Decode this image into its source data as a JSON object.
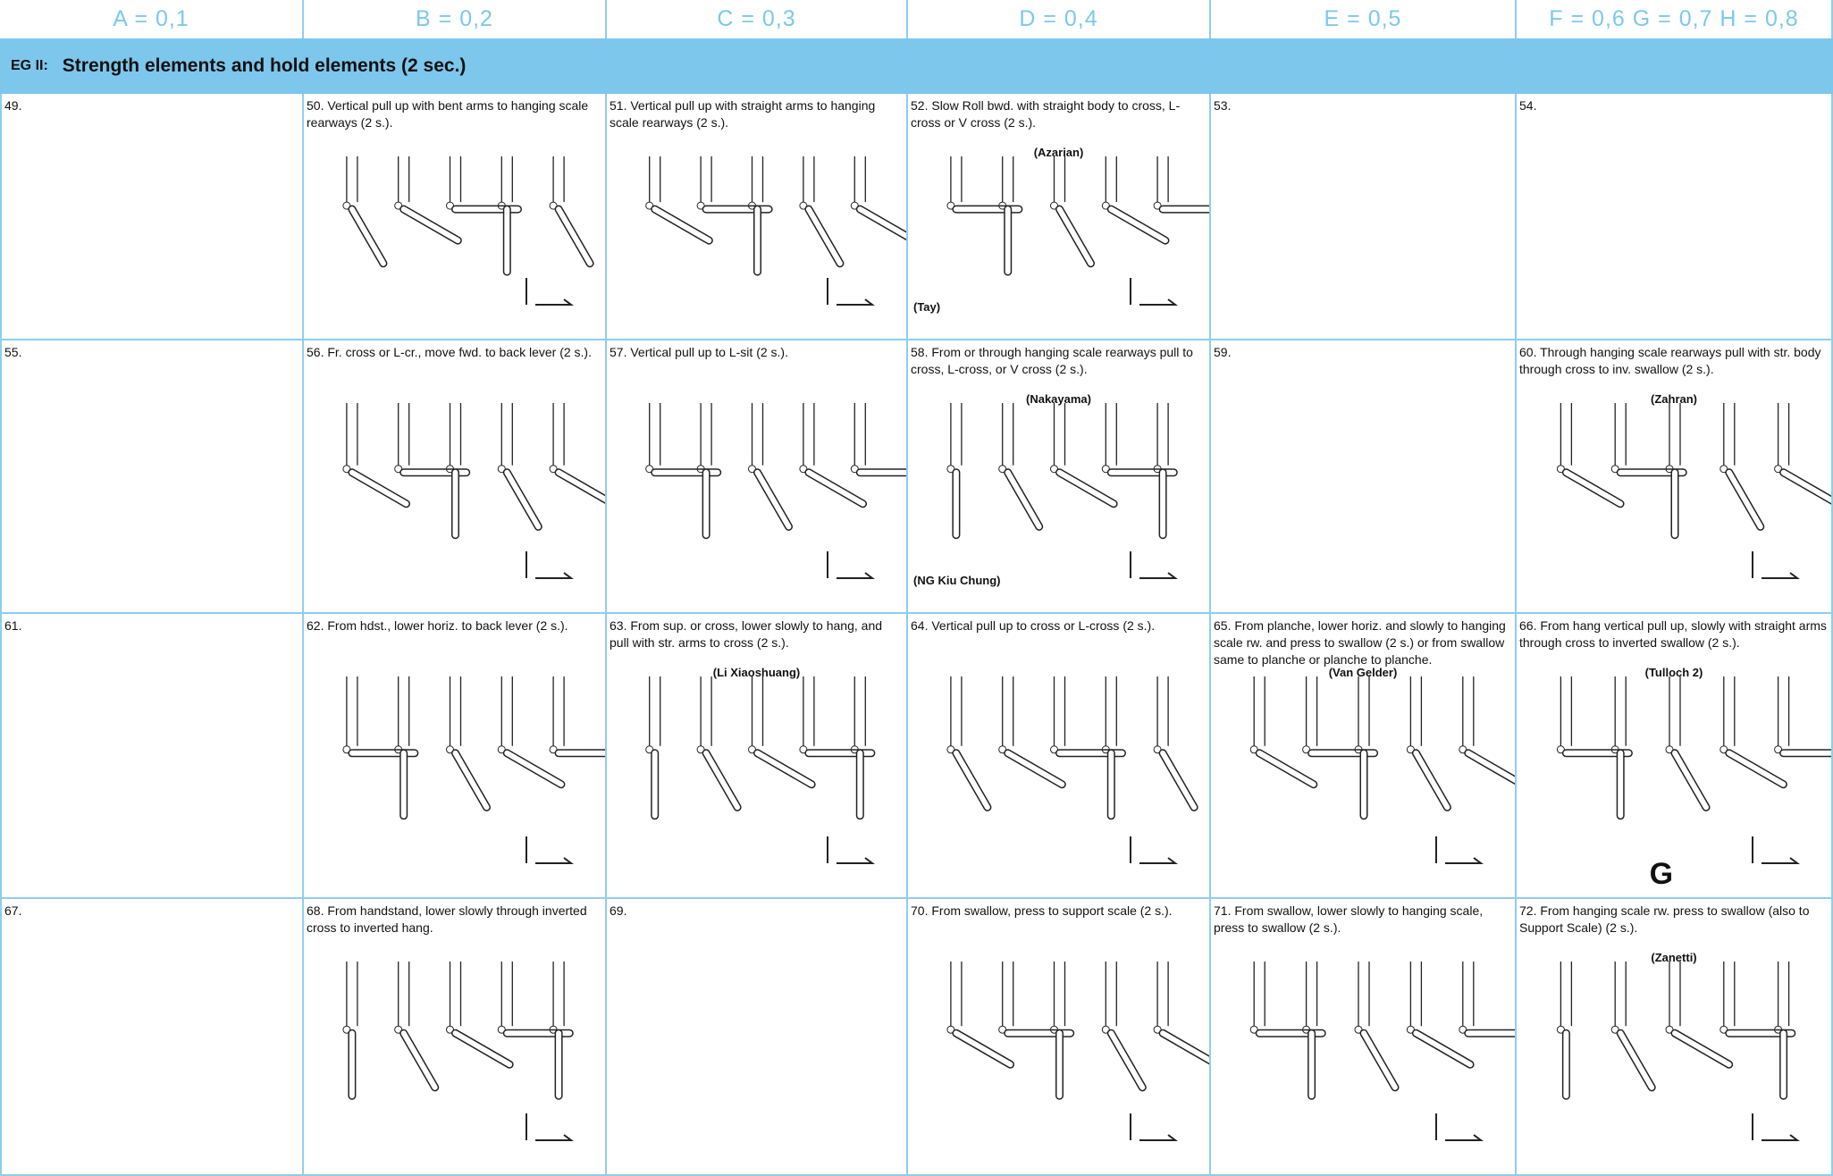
{
  "header": {
    "columns": [
      "A = 0,1",
      "B = 0,2",
      "C = 0,3",
      "D = 0,4",
      "E = 0,5",
      "F = 0,6 G = 0,7 H = 0,8"
    ]
  },
  "section": {
    "code": "EG II:",
    "title": "Strength elements and hold elements (2 sec.)"
  },
  "rows": [
    [
      {
        "text": "49."
      },
      {
        "text": "50. Vertical pull up with bent arms to hanging scale rearways (2 s.)."
      },
      {
        "text": "51. Vertical pull up with straight arms to hanging scale rearways (2 s.)."
      },
      {
        "text": "52. Slow Roll bwd. with straight body to cross, L-cross or V cross (2 s.).",
        "names": [
          "(Azarian)",
          "(Tay)"
        ]
      },
      {
        "text": "53."
      },
      {
        "text": "54."
      }
    ],
    [
      {
        "text": "55."
      },
      {
        "text": "56. Fr. cross or L-cr., move fwd. to back lever (2 s.)."
      },
      {
        "text": "57. Vertical pull up to L-sit (2 s.)."
      },
      {
        "text": "58. From or through hanging scale rearways pull to cross, L-cross, or V cross (2 s.).",
        "names": [
          "(Nakayama)",
          "(NG Kiu Chung)"
        ]
      },
      {
        "text": "59."
      },
      {
        "text": "60. Through hanging scale rearways pull with str. body through cross to inv. swallow (2 s.).",
        "names": [
          "(Zahran)"
        ]
      }
    ],
    [
      {
        "text": "61."
      },
      {
        "text": "62. From hdst., lower horiz. to back lever (2 s.)."
      },
      {
        "text": "63. From sup. or cross, lower slowly to hang, and pull with str. arms to cross (2 s.).",
        "names": [
          "(Li Xiaoshuang)"
        ]
      },
      {
        "text": "64. Vertical pull up to cross or L-cross (2 s.)."
      },
      {
        "text": "65. From planche, lower horiz. and slowly to hanging scale rw. and press to swallow (2 s.) or from swallow same to planche or planche to planche.",
        "names": [
          "(Van Gelder)"
        ]
      },
      {
        "text": "66. From hang vertical pull up, slowly with straight arms through cross to inverted swallow (2 s.).",
        "names": [
          "(Tulloch 2)"
        ],
        "grade": "G"
      }
    ],
    [
      {
        "text": "67."
      },
      {
        "text": "68. From handstand, lower slowly through inverted cross to inverted hang."
      },
      {
        "text": "69."
      },
      {
        "text": "70. From swallow, press to support scale (2 s.)."
      },
      {
        "text": "71. From swallow, lower slowly to hanging scale, press to swallow (2 s.)."
      },
      {
        "text": "72. From hanging scale rw. press to swallow (also to Support Scale) (2 s.).",
        "names": [
          "(Zanetti)"
        ]
      }
    ]
  ]
}
